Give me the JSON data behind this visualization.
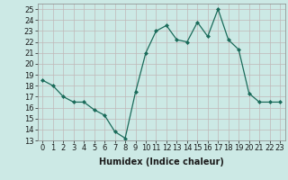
{
  "x": [
    0,
    1,
    2,
    3,
    4,
    5,
    6,
    7,
    8,
    9,
    10,
    11,
    12,
    13,
    14,
    15,
    16,
    17,
    18,
    19,
    20,
    21,
    22,
    23
  ],
  "y": [
    18.5,
    18.0,
    17.0,
    16.5,
    16.5,
    15.8,
    15.3,
    13.8,
    13.2,
    17.4,
    21.0,
    23.0,
    23.5,
    22.2,
    22.0,
    23.8,
    22.5,
    25.0,
    22.2,
    21.3,
    17.3,
    16.5,
    16.5,
    16.5
  ],
  "line_color": "#1a6b5a",
  "marker": "D",
  "marker_size": 2,
  "bg_color": "#cce9e5",
  "grid_color": "#c0b8b8",
  "xlabel": "Humidex (Indice chaleur)",
  "xlim": [
    -0.5,
    23.5
  ],
  "ylim": [
    13,
    25.5
  ],
  "yticks": [
    13,
    14,
    15,
    16,
    17,
    18,
    19,
    20,
    21,
    22,
    23,
    24,
    25
  ],
  "xticks": [
    0,
    1,
    2,
    3,
    4,
    5,
    6,
    7,
    8,
    9,
    10,
    11,
    12,
    13,
    14,
    15,
    16,
    17,
    18,
    19,
    20,
    21,
    22,
    23
  ],
  "tick_fontsize": 6,
  "xlabel_fontsize": 7
}
